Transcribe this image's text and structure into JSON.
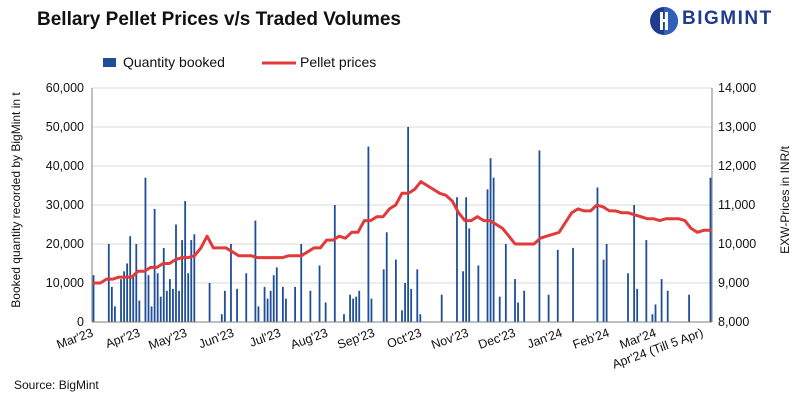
{
  "header": {
    "title": "Bellary Pellet Prices v/s Traded Volumes",
    "brand": "BIGMINT"
  },
  "footer": {
    "source": "Source: BigMint"
  },
  "colors": {
    "bars": "#1f4e99",
    "line": "#e03a3a",
    "brand": "#1f3c8f"
  },
  "chart_data": {
    "type": "bar+line",
    "title": "Bellary Pellet Prices v/s Traded Volumes",
    "x_tick_labels": [
      "Mar'23",
      "Apr'23",
      "May'23",
      "Jun'23",
      "Jul'23",
      "Aug'23",
      "Sep'23",
      "Oct'23",
      "Nov'23",
      "Dec'23",
      "Jan'24",
      "Feb'24",
      "Mar'24",
      "Apr'24 (Till 5 Apr)"
    ],
    "y_left": {
      "label": "Booked quantity recorded by BigMint in t",
      "ylim": [
        0,
        60000
      ],
      "ticks": [
        "0",
        "10,000",
        "20,000",
        "30,000",
        "40,000",
        "50,000",
        "60,000"
      ]
    },
    "y_right": {
      "label": "EXW-Prices in INR/t",
      "ylim": [
        8000,
        14000
      ],
      "ticks": [
        "8,000",
        "9,000",
        "10,000",
        "11,000",
        "12,000",
        "13,000",
        "14,000"
      ]
    },
    "legend": {
      "placement": "top-left",
      "bar": "Quantity booked",
      "line": "Pellet prices"
    },
    "series": [
      {
        "name": "Quantity booked",
        "kind": "bar",
        "axis": "left",
        "values": [
          12000,
          0,
          0,
          0,
          0,
          20000,
          9000,
          4000,
          0,
          11000,
          13000,
          15000,
          22000,
          12000,
          20000,
          5500,
          0,
          37000,
          12000,
          4000,
          29000,
          12500,
          6500,
          19000,
          8000,
          11000,
          8500,
          25000,
          8000,
          21000,
          31000,
          12500,
          21000,
          22500,
          0,
          0,
          0,
          0,
          10000,
          0,
          0,
          0,
          2000,
          8000,
          0,
          20000,
          0,
          8500,
          0,
          0,
          12500,
          0,
          0,
          26000,
          4000,
          0,
          9000,
          6000,
          8000,
          12000,
          14000,
          0,
          9000,
          6000,
          0,
          0,
          9000,
          0,
          20000,
          0,
          0,
          8000,
          0,
          0,
          14500,
          0,
          5000,
          0,
          0,
          30000,
          0,
          0,
          2000,
          0,
          7000,
          6000,
          6500,
          8000,
          0,
          0,
          45000,
          6000,
          0,
          0,
          0,
          13500,
          23000,
          0,
          0,
          16000,
          0,
          3000,
          10000,
          50000,
          8500,
          0,
          13500,
          2000,
          0,
          0,
          0,
          0,
          0,
          0,
          7000,
          0,
          0,
          0,
          0,
          32000,
          0,
          13000,
          32000,
          24000,
          0,
          0,
          14500,
          0,
          0,
          34000,
          42000,
          37000,
          0,
          6500,
          0,
          20000,
          0,
          0,
          11000,
          5000,
          0,
          8000,
          0,
          0,
          0,
          0,
          44000,
          0,
          0,
          7000,
          0,
          0,
          18500,
          0,
          0,
          0,
          0,
          19000,
          0,
          0,
          0,
          0,
          0,
          0,
          0,
          34500,
          0,
          16000,
          20000,
          0,
          0,
          0,
          0,
          0,
          0,
          12500,
          0,
          30000,
          8500,
          0,
          0,
          21000,
          0,
          2000,
          4500,
          0,
          11000,
          0,
          8000,
          0,
          0,
          0,
          0,
          0,
          0,
          7000,
          0,
          0,
          0,
          0,
          0,
          0,
          37000
        ],
        "value_count_note": "weekly-ish bookings, estimated"
      },
      {
        "name": "Pellet prices",
        "kind": "line",
        "axis": "right",
        "x_pos": [
          0,
          2,
          4,
          6,
          8,
          10,
          12,
          14,
          16,
          18,
          20,
          22,
          24,
          26,
          28,
          30,
          32,
          34,
          36,
          38,
          40,
          42,
          44,
          46,
          48,
          50,
          52,
          54,
          56,
          58,
          60,
          62,
          64,
          66,
          68,
          70,
          72,
          74,
          76,
          78,
          80,
          82,
          84,
          86,
          88,
          90,
          92,
          94,
          96,
          98,
          100,
          102,
          104,
          106,
          108,
          110,
          112,
          114,
          116,
          118,
          120,
          122,
          124,
          126,
          128,
          130,
          132,
          134,
          136,
          138,
          140,
          142,
          144,
          146,
          148,
          150,
          152,
          154,
          156,
          158,
          160,
          162,
          164,
          166,
          168,
          170,
          172,
          174,
          176,
          178,
          180,
          182,
          184,
          186,
          188,
          190,
          192,
          194,
          196
        ],
        "values": [
          9000,
          9000,
          9100,
          9100,
          9150,
          9150,
          9150,
          9300,
          9300,
          9400,
          9400,
          9500,
          9500,
          9600,
          9650,
          9650,
          9700,
          9900,
          10200,
          9900,
          9900,
          9900,
          9800,
          9700,
          9700,
          9700,
          9650,
          9650,
          9650,
          9650,
          9650,
          9700,
          9700,
          9700,
          9800,
          9900,
          9900,
          10100,
          10100,
          10200,
          10150,
          10300,
          10300,
          10600,
          10600,
          10700,
          10700,
          10900,
          11000,
          11300,
          11300,
          11400,
          11600,
          11500,
          11400,
          11300,
          11250,
          11100,
          10800,
          10600,
          10600,
          10700,
          10600,
          10600,
          10500,
          10400,
          10200,
          10000,
          10000,
          10000,
          10000,
          10150,
          10200,
          10250,
          10300,
          10550,
          10800,
          10900,
          10850,
          10850,
          11000,
          10950,
          10850,
          10850,
          10800,
          10800,
          10750,
          10700,
          10650,
          10650,
          10600,
          10650,
          10650,
          10650,
          10600,
          10400,
          10300,
          10350,
          10350
        ]
      }
    ]
  }
}
